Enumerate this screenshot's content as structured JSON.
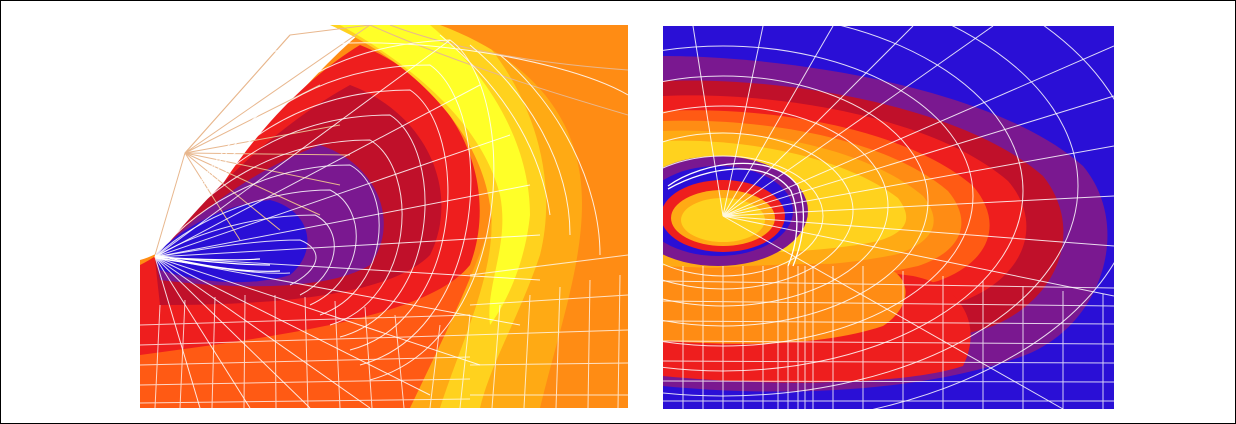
{
  "figure": {
    "panels": [
      {
        "id": "left",
        "description_name": "stress-contour-notch-mesh"
      },
      {
        "id": "right",
        "description_name": "stress-contour-hole-mesh"
      }
    ],
    "palette": {
      "blue": "#2a0fd6",
      "purple": "#7a1890",
      "crimson": "#c0102a",
      "red": "#ee1e1e",
      "orange_red": "#ff5a14",
      "orange": "#ff8c14",
      "amber": "#ffaa14",
      "gold": "#ffd21e",
      "yellow": "#ffff28",
      "mesh_white": "#ffffff",
      "mesh_tan": "#e8b78e"
    }
  }
}
